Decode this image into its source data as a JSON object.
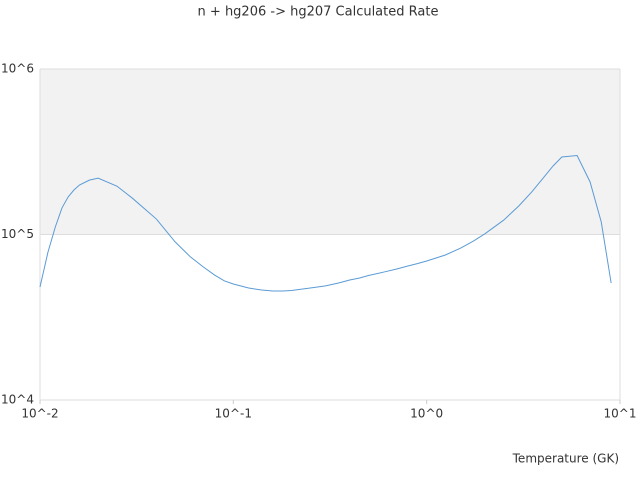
{
  "chart_data": {
    "type": "line",
    "title": "n + hg206 -> hg207 Calculated Rate",
    "x_label": "Temperature (GK)",
    "x_log": true,
    "y_log": true,
    "grid": true,
    "band_color": "#f2f2f2",
    "xlim": [
      0.01,
      10
    ],
    "ylim": [
      10000,
      1000000
    ],
    "xticks": [
      {
        "value": 0.01,
        "label": "10^-2"
      },
      {
        "value": 0.1,
        "label": "10^-1"
      },
      {
        "value": 1,
        "label": "10^0"
      },
      {
        "value": 10,
        "label": "10^1"
      }
    ],
    "yticks": [
      {
        "value": 10000,
        "label": "10^4"
      },
      {
        "value": 100000,
        "label": "10^5"
      },
      {
        "value": 1000000,
        "label": "10^6"
      }
    ],
    "x": [
      0.01,
      0.011,
      0.012,
      0.013,
      0.014,
      0.015,
      0.016,
      0.018,
      0.02,
      0.025,
      0.03,
      0.04,
      0.05,
      0.06,
      0.07,
      0.08,
      0.09,
      0.1,
      0.12,
      0.14,
      0.16,
      0.18,
      0.2,
      0.25,
      0.3,
      0.35,
      0.4,
      0.45,
      0.5,
      0.6,
      0.7,
      0.8,
      0.9,
      1,
      1.25,
      1.5,
      1.75,
      2,
      2.5,
      3,
      3.5,
      4,
      4.5,
      5,
      6,
      7,
      8,
      9
    ],
    "series": [
      {
        "color": "#5b9bd5",
        "values": [
          48200,
          78400,
          111000,
          145000,
          169000,
          186000,
          199000,
          213000,
          219000,
          196000,
          166000,
          124000,
          90200,
          73200,
          63600,
          56900,
          52400,
          50200,
          47500,
          46200,
          45600,
          45600,
          45900,
          47500,
          48900,
          50900,
          53100,
          54600,
          56500,
          59300,
          61900,
          64500,
          66800,
          69200,
          75200,
          82800,
          91400,
          101000,
          122000,
          149000,
          181000,
          219000,
          259000,
          294000,
          300000,
          208000,
          119000,
          50900
        ]
      }
    ]
  }
}
